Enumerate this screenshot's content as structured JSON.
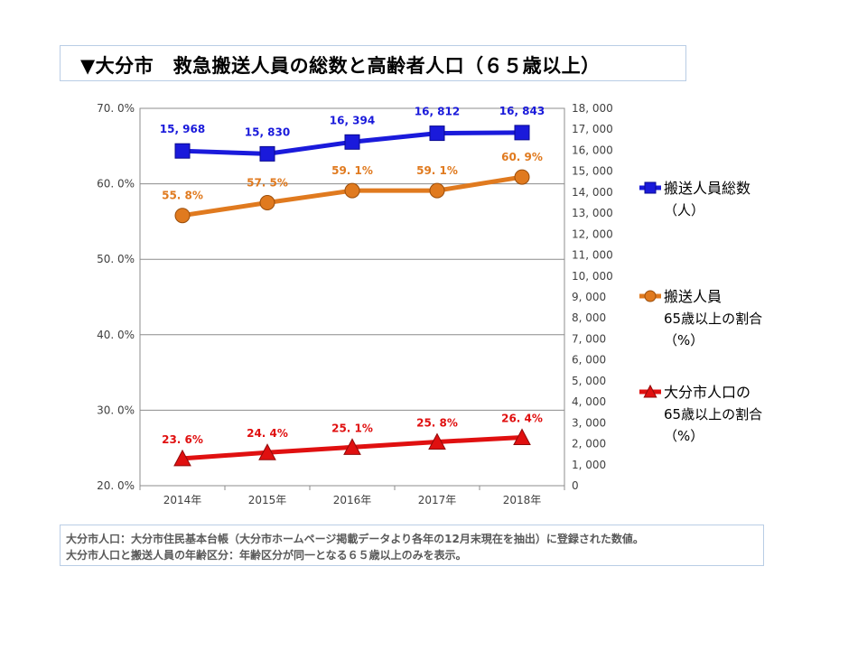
{
  "title": "▼大分市　救急搬送人員の総数と高齢者人口（６５歳以上）",
  "notes": [
    "大分市人口：大分市住民基本台帳（大分市ホームページ掲載データより各年の12月末現在を抽出）に登録された数値。",
    "大分市人口と搬送人員の年齢区分：年齢区分が同一となる６５歳以上のみを表示。"
  ],
  "chart_data": {
    "type": "line",
    "categories": [
      "2014年",
      "2015年",
      "2016年",
      "2017年",
      "2018年"
    ],
    "y_left": {
      "range": [
        20,
        70
      ],
      "ticks": [
        20,
        30,
        40,
        50,
        60,
        70
      ],
      "tick_labels": [
        "20. 0%",
        "30. 0%",
        "40. 0%",
        "50. 0%",
        "60. 0%",
        "70. 0%"
      ]
    },
    "y_right": {
      "range": [
        0,
        18000
      ],
      "ticks": [
        0,
        1000,
        2000,
        3000,
        4000,
        5000,
        6000,
        7000,
        8000,
        9000,
        10000,
        11000,
        12000,
        13000,
        14000,
        15000,
        16000,
        17000,
        18000
      ],
      "tick_labels": [
        "0",
        "1, 000",
        "2, 000",
        "3, 000",
        "4, 000",
        "5, 000",
        "6, 000",
        "7, 000",
        "8, 000",
        "9, 000",
        "10, 000",
        "11, 000",
        "12, 000",
        "13, 000",
        "14, 000",
        "15, 000",
        "16, 000",
        "17, 000",
        "18, 000"
      ]
    },
    "gridlines": [
      30,
      40,
      50,
      60
    ],
    "series": [
      {
        "name_lines": [
          "搬送人員総数",
          "（人）"
        ],
        "axis": "right",
        "marker": "square",
        "color": "#1a1adb",
        "values": [
          15968,
          15830,
          16394,
          16812,
          16843
        ],
        "labels": [
          "15, 968",
          "15, 830",
          "16, 394",
          "16, 812",
          "16, 843"
        ]
      },
      {
        "name_lines": [
          "搬送人員",
          "65歳以上の割合",
          "（%）"
        ],
        "axis": "left",
        "marker": "circle",
        "color": "#e07a1f",
        "values": [
          55.8,
          57.5,
          59.1,
          59.1,
          60.9
        ],
        "labels": [
          "55. 8%",
          "57. 5%",
          "59. 1%",
          "59. 1%",
          "60. 9%"
        ]
      },
      {
        "name_lines": [
          "大分市人口の",
          "65歳以上の割合",
          "（%）"
        ],
        "axis": "left",
        "marker": "triangle",
        "color": "#e01010",
        "values": [
          23.6,
          24.4,
          25.1,
          25.8,
          26.4
        ],
        "labels": [
          "23. 6%",
          "24. 4%",
          "25. 1%",
          "25. 8%",
          "26. 4%"
        ]
      }
    ],
    "legend_position": "right"
  }
}
